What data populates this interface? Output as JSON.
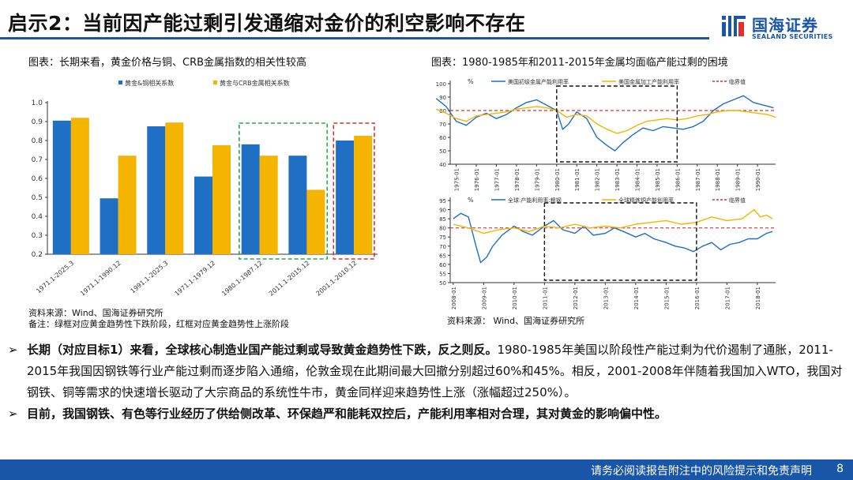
{
  "header": {
    "title": "启示2：当前因产能过剩引发通缩对金价的利空影响不存在",
    "logo_cn": "国海证券",
    "logo_en": "SEALAND SECURITIES",
    "accent": "#1a56a8"
  },
  "left_figure": {
    "caption": "图表：长期来看，黄金价格与铜、CRB金属指数的相关性较高",
    "source": "资料来源：Wind、国海证券研究所",
    "note": "备注：绿框对应黄金趋势性下跌阶段，红框对应黄金趋势性上涨阶段"
  },
  "right_figure": {
    "caption": "图表：1980-1985年和2011-2015年金属均面临产能过剩的困境",
    "source": "资料来源： Wind、国海证券研究所"
  },
  "chart_data": [
    {
      "type": "bar",
      "categories": [
        "1971.1-2025.3",
        "1971.1-1990.12",
        "1991.1-2025.3",
        "1971.1-1979.12",
        "1980.1-1987.12",
        "2011.1-2015.12",
        "2001.1-2010.12"
      ],
      "series": [
        {
          "name": "黄金&铜相关系数",
          "color": "#1f6fc5",
          "values": [
            0.905,
            0.495,
            0.875,
            0.61,
            0.78,
            0.72,
            0.8
          ]
        },
        {
          "name": "黄金与CRB金属相关系数",
          "color": "#f5b400",
          "values": [
            0.92,
            0.72,
            0.895,
            0.775,
            0.72,
            0.54,
            0.825
          ]
        }
      ],
      "yticks": [
        "0.2",
        "0.3",
        "0.4",
        "0.5",
        "0.6",
        "0.7",
        "0.8",
        "0.9",
        "1.0"
      ],
      "ylim": [
        0.2,
        1.0
      ],
      "green_box": [
        "1980.1-1987.12",
        "2011.1-2015.12"
      ],
      "red_box": [
        "2001.1-2010.12"
      ],
      "legend": "top"
    },
    {
      "type": "line",
      "unit": "%",
      "ylim": [
        40,
        100
      ],
      "yticks": [
        "40",
        "50",
        "60",
        "70",
        "80",
        "90",
        "100"
      ],
      "xticks": [
        "1975-01",
        "1976-01",
        "1977-01",
        "1978-01",
        "1979-01",
        "1980-01",
        "1981-01",
        "1982-01",
        "1983-01",
        "1984-01",
        "1985-01",
        "1986-01",
        "1987-01",
        "1988-01",
        "1989-01",
        "1990-01"
      ],
      "threshold": {
        "name": "临界值",
        "value": 80,
        "color": "#e03030"
      },
      "series": [
        {
          "name": "美国初级金属产能利用率",
          "color": "#1f6fc5",
          "x": [
            1974.0,
            1974.5,
            1975.0,
            1975.5,
            1976.0,
            1976.5,
            1977.0,
            1977.5,
            1978.0,
            1978.5,
            1979.0,
            1979.5,
            1980.0,
            1980.3,
            1980.6,
            1981.0,
            1981.5,
            1982.0,
            1982.5,
            1982.9,
            1983.3,
            1983.8,
            1984.3,
            1984.8,
            1985.3,
            1985.8,
            1986.3,
            1986.8,
            1987.3,
            1987.8,
            1988.3,
            1988.8,
            1989.3,
            1989.8,
            1990.3,
            1990.8
          ],
          "values": [
            89,
            83,
            72,
            69,
            75,
            78,
            74,
            77,
            82,
            86,
            88,
            84,
            80,
            66,
            70,
            79,
            74,
            60,
            54,
            50,
            56,
            62,
            67,
            65,
            68,
            67,
            66,
            68,
            72,
            80,
            85,
            88,
            91,
            86,
            84,
            82
          ]
        },
        {
          "name": "美国金属加工产能利用率",
          "color": "#f5b400",
          "x": [
            1974.0,
            1974.5,
            1975.0,
            1975.5,
            1976.0,
            1976.5,
            1977.0,
            1977.5,
            1978.0,
            1978.5,
            1979.0,
            1979.5,
            1980.0,
            1980.5,
            1981.0,
            1981.5,
            1982.0,
            1982.5,
            1983.0,
            1983.5,
            1984.0,
            1984.5,
            1985.0,
            1985.5,
            1986.0,
            1986.5,
            1987.0,
            1987.5,
            1988.0,
            1988.5,
            1989.0,
            1989.5,
            1990.0,
            1990.5,
            1990.9
          ],
          "values": [
            81,
            78,
            74,
            72,
            76,
            77,
            78,
            79,
            81,
            82,
            83,
            82,
            80,
            75,
            77,
            76,
            70,
            66,
            63,
            65,
            69,
            72,
            73,
            74,
            73,
            74,
            76,
            77,
            79,
            80,
            80,
            79,
            78,
            77,
            75
          ]
        }
      ],
      "highlight_box": {
        "from": "1980-01",
        "to": "1986-01"
      }
    },
    {
      "type": "line",
      "unit": "%",
      "ylim": [
        50,
        95
      ],
      "yticks": [
        "50",
        "55",
        "60",
        "65",
        "70",
        "75",
        "80",
        "85",
        "90",
        "95"
      ],
      "xticks": [
        "2008-01",
        "2009-01",
        "2010-01",
        "2011-01",
        "2012-01",
        "2013-01",
        "2014-01",
        "2015-01",
        "2016-01",
        "2017-01",
        "2018-01"
      ],
      "threshold": {
        "name": "临界值",
        "value": 80,
        "color": "#e03030"
      },
      "series": [
        {
          "name": "全球:产能利用率:粗钢",
          "color": "#1f6fc5",
          "x": [
            2008.0,
            2008.25,
            2008.5,
            2008.75,
            2008.9,
            2009.1,
            2009.3,
            2009.6,
            2010.0,
            2010.3,
            2010.6,
            2011.0,
            2011.3,
            2011.6,
            2012.0,
            2012.3,
            2012.6,
            2013.0,
            2013.3,
            2013.6,
            2014.0,
            2014.3,
            2014.6,
            2015.0,
            2015.3,
            2015.6,
            2015.9,
            2016.2,
            2016.5,
            2016.8,
            2017.1,
            2017.4,
            2017.7,
            2018.0,
            2018.3,
            2018.5
          ],
          "values": [
            85,
            88,
            86,
            70,
            61,
            64,
            70,
            76,
            81,
            78,
            76,
            81,
            84,
            79,
            77,
            81,
            76,
            77,
            80,
            78,
            75,
            77,
            74,
            72,
            70,
            69,
            67,
            70,
            72,
            68,
            71,
            72,
            74,
            74,
            77,
            78
          ]
        },
        {
          "name": "全球精炼铜产能利用率",
          "color": "#f5b400",
          "x": [
            2008.0,
            2008.5,
            2009.0,
            2009.5,
            2010.0,
            2010.5,
            2011.0,
            2011.5,
            2012.0,
            2012.5,
            2013.0,
            2013.5,
            2014.0,
            2014.5,
            2015.0,
            2015.5,
            2016.0,
            2016.5,
            2017.0,
            2017.5,
            2017.9,
            2018.1,
            2018.3,
            2018.5
          ],
          "values": [
            82,
            80,
            77,
            79,
            80,
            78,
            81,
            80,
            82,
            80,
            81,
            80,
            82,
            83,
            84,
            82,
            83,
            86,
            84,
            85,
            90,
            86,
            87,
            85
          ]
        }
      ],
      "highlight_box": {
        "from": "2011-01",
        "to": "2016-01"
      }
    }
  ],
  "bullets": [
    {
      "bold": "长期（对应目标1）来看，全球核心制造业国产能过剩或导致黄金趋势性下跌，反之则反。",
      "text": "1980-1985年美国以阶段性产能过剩为代价遏制了通胀，2011-2015年我国因钢铁等行业产能过剩而逐步陷入通缩，伦敦金现在此期间最大回撤分别超过60%和45%。相反，2001-2008年伴随着我国加入WTO，我国对钢铁、铜等需求的快速增长驱动了大宗商品的系统性牛市，黄金同样迎来趋势性上涨（涨幅超过250%）。"
    },
    {
      "bold": "目前，我国钢铁、有色等行业经历了供给侧改革、环保趋严和能耗双控后，产能利用率相对合理，其对黄金的影响偏中性。",
      "text": ""
    }
  ],
  "footer": {
    "disclaimer": "请务必阅读报告附注中的风险提示和免责声明",
    "page": "8"
  }
}
